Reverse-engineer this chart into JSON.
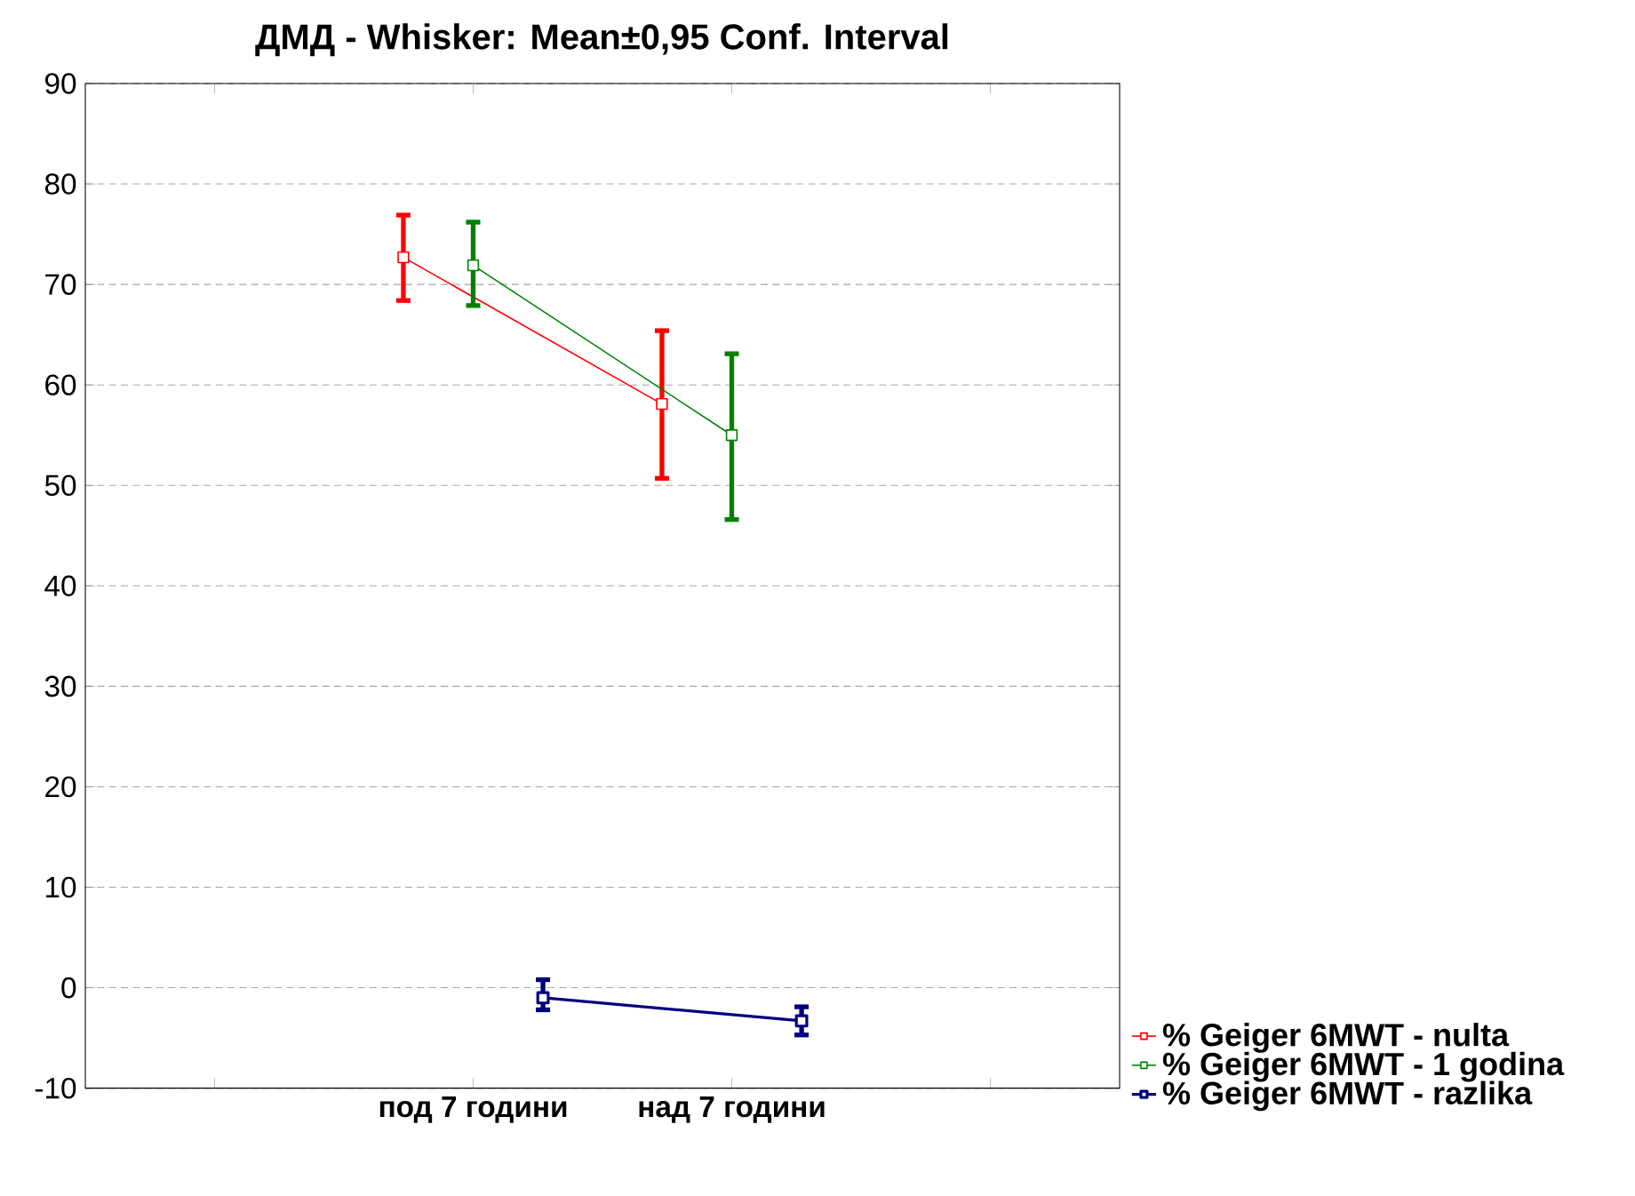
{
  "chart_data": {
    "type": "line",
    "title": "ДМД - Whisker: Mean±0,95 Conf. Interval",
    "categories": [
      null,
      "под 7 години",
      "над 7 години",
      null
    ],
    "series": [
      {
        "name": "% Geiger 6MWT - nulta",
        "color": "#ff0000",
        "values": [
          null,
          72.7,
          58.1,
          null
        ],
        "errors": [
          null,
          [
            68.4,
            76.9
          ],
          [
            50.7,
            65.4
          ],
          null
        ]
      },
      {
        "name": "% Geiger 6MWT - 1 godina",
        "color": "#008000",
        "values": [
          null,
          71.9,
          55.0,
          null
        ],
        "errors": [
          null,
          [
            67.9,
            76.2
          ],
          [
            46.6,
            63.1
          ],
          null
        ]
      },
      {
        "name": "% Geiger 6MWT - razlika",
        "color": "#000080",
        "values": [
          null,
          -1.0,
          -3.3,
          null
        ],
        "errors": [
          null,
          [
            -2.2,
            0.8
          ],
          [
            -4.7,
            -1.9
          ],
          null
        ]
      }
    ],
    "ylim": [
      -10,
      90
    ],
    "yticks": [
      -10,
      0,
      10,
      20,
      30,
      40,
      50,
      60,
      70,
      80,
      90
    ],
    "grid": "y",
    "legend": "bottom right",
    "marker": "square",
    "line_style": "solid"
  }
}
